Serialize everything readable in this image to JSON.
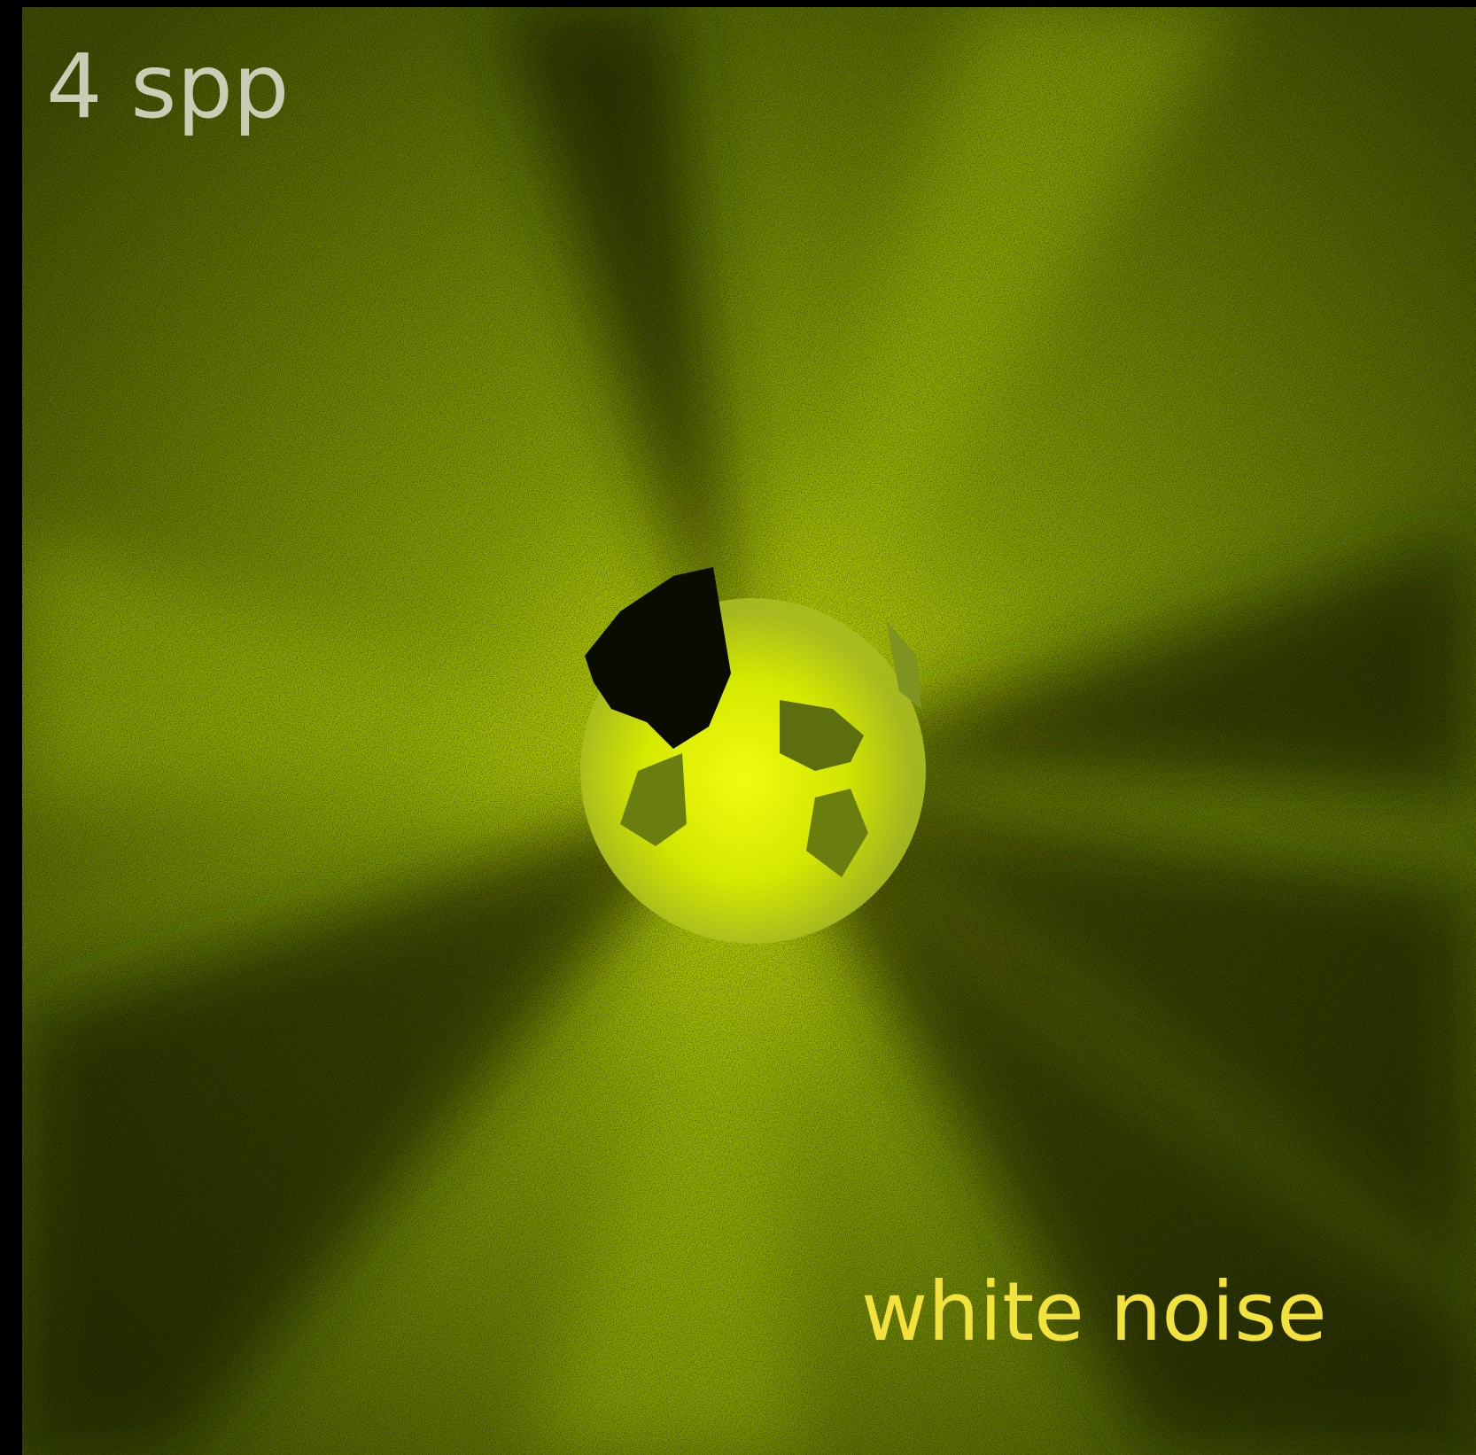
{
  "labels": {
    "samples": "4 spp",
    "method": "white noise"
  }
}
